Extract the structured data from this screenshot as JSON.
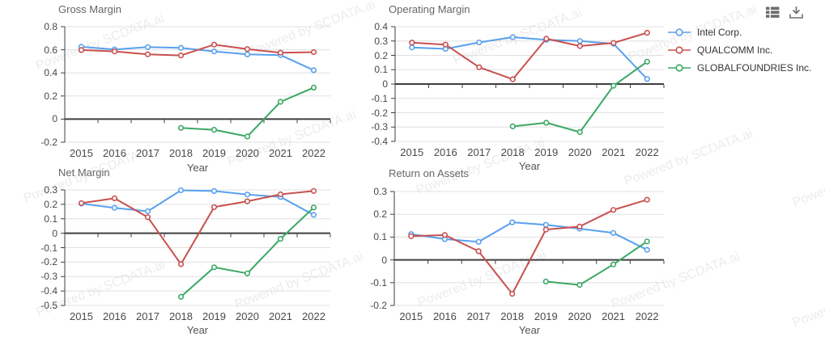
{
  "watermark": {
    "text": "Powered by SCDATA.ai"
  },
  "toolbox": {
    "icons": [
      {
        "name": "data-view-icon"
      },
      {
        "name": "save-as-image-icon"
      }
    ],
    "color": "#6d6d6d"
  },
  "legend": {
    "items": [
      {
        "label": "Intel Corp.",
        "color": "#58a0ee"
      },
      {
        "label": "QUALCOMM Inc.",
        "color": "#c8504f"
      },
      {
        "label": "GLOBALFOUNDRIES Inc.",
        "color": "#3aa864"
      }
    ]
  },
  "axis_colors": {
    "grid": "#e0e0e0",
    "axis": "#3f3f3f",
    "tick_text": "#494949"
  },
  "chart_data": [
    {
      "type": "line",
      "title": "Gross Margin",
      "xlabel": "Year",
      "categories": [
        "2015",
        "2016",
        "2017",
        "2018",
        "2019",
        "2020",
        "2021",
        "2022"
      ],
      "yticks": [
        "0.8",
        "0.6",
        "0.4",
        "0.2",
        "0",
        "-0.2"
      ],
      "ylim": [
        -0.2,
        0.8
      ],
      "legend_position": "right",
      "grid": true,
      "series": [
        {
          "name": "Intel Corp.",
          "color": "#58a0ee",
          "values": [
            0.626,
            0.603,
            0.623,
            0.617,
            0.586,
            0.56,
            0.554,
            0.423
          ]
        },
        {
          "name": "QUALCOMM Inc.",
          "color": "#c8504f",
          "values": [
            0.598,
            0.586,
            0.561,
            0.551,
            0.645,
            0.606,
            0.575,
            0.58
          ]
        },
        {
          "name": "GLOBALFOUNDRIES Inc.",
          "color": "#3aa864",
          "values": [
            null,
            null,
            null,
            -0.076,
            -0.092,
            -0.15,
            0.15,
            0.273
          ]
        }
      ]
    },
    {
      "type": "line",
      "title": "Operating Margin",
      "xlabel": "Year",
      "categories": [
        "2015",
        "2016",
        "2017",
        "2018",
        "2019",
        "2020",
        "2021",
        "2022"
      ],
      "yticks": [
        "0.4",
        "0.3",
        "0.2",
        "0.1",
        "0",
        "-0.1",
        "-0.2",
        "-0.3",
        "-0.4"
      ],
      "ylim": [
        -0.4,
        0.4
      ],
      "grid": true,
      "series": [
        {
          "name": "Intel Corp.",
          "color": "#58a0ee",
          "values": [
            0.255,
            0.245,
            0.29,
            0.327,
            0.308,
            0.3,
            0.281,
            0.035
          ]
        },
        {
          "name": "QUALCOMM Inc.",
          "color": "#c8504f",
          "values": [
            0.289,
            0.275,
            0.117,
            0.033,
            0.316,
            0.265,
            0.287,
            0.357
          ]
        },
        {
          "name": "GLOBALFOUNDRIES Inc.",
          "color": "#3aa864",
          "values": [
            null,
            null,
            null,
            -0.295,
            -0.27,
            -0.335,
            -0.012,
            0.156
          ]
        }
      ]
    },
    {
      "type": "line",
      "title": "Net Margin",
      "xlabel": "Year",
      "categories": [
        "2015",
        "2016",
        "2017",
        "2018",
        "2019",
        "2020",
        "2021",
        "2022"
      ],
      "yticks": [
        "0.3",
        "0.2",
        "0.1",
        "0",
        "-0.1",
        "-0.2",
        "-0.3",
        "-0.4",
        "-0.5"
      ],
      "ylim": [
        -0.5,
        0.3
      ],
      "grid": true,
      "series": [
        {
          "name": "Intel Corp.",
          "color": "#58a0ee",
          "values": [
            0.205,
            0.176,
            0.152,
            0.297,
            0.292,
            0.268,
            0.251,
            0.127
          ]
        },
        {
          "name": "QUALCOMM Inc.",
          "color": "#c8504f",
          "values": [
            0.208,
            0.242,
            0.111,
            -0.214,
            0.181,
            0.221,
            0.269,
            0.293
          ]
        },
        {
          "name": "GLOBALFOUNDRIES Inc.",
          "color": "#3aa864",
          "values": [
            null,
            null,
            null,
            -0.44,
            -0.236,
            -0.278,
            -0.039,
            0.178
          ]
        }
      ]
    },
    {
      "type": "line",
      "title": "Return on Assets",
      "xlabel": "Year",
      "categories": [
        "2015",
        "2016",
        "2017",
        "2018",
        "2019",
        "2020",
        "2021",
        "2022"
      ],
      "yticks": [
        "0.3",
        "0.2",
        "0.1",
        "0",
        "-0.1",
        "-0.2"
      ],
      "ylim": [
        -0.2,
        0.3
      ],
      "grid": true,
      "series": [
        {
          "name": "Intel Corp.",
          "color": "#58a0ee",
          "values": [
            0.113,
            0.091,
            0.079,
            0.165,
            0.154,
            0.137,
            0.118,
            0.044
          ]
        },
        {
          "name": "QUALCOMM Inc.",
          "color": "#c8504f",
          "values": [
            0.104,
            0.109,
            0.038,
            -0.149,
            0.133,
            0.146,
            0.219,
            0.264
          ]
        },
        {
          "name": "GLOBALFOUNDRIES Inc.",
          "color": "#3aa864",
          "values": [
            null,
            null,
            null,
            null,
            -0.095,
            -0.11,
            -0.02,
            0.081
          ]
        }
      ]
    }
  ]
}
